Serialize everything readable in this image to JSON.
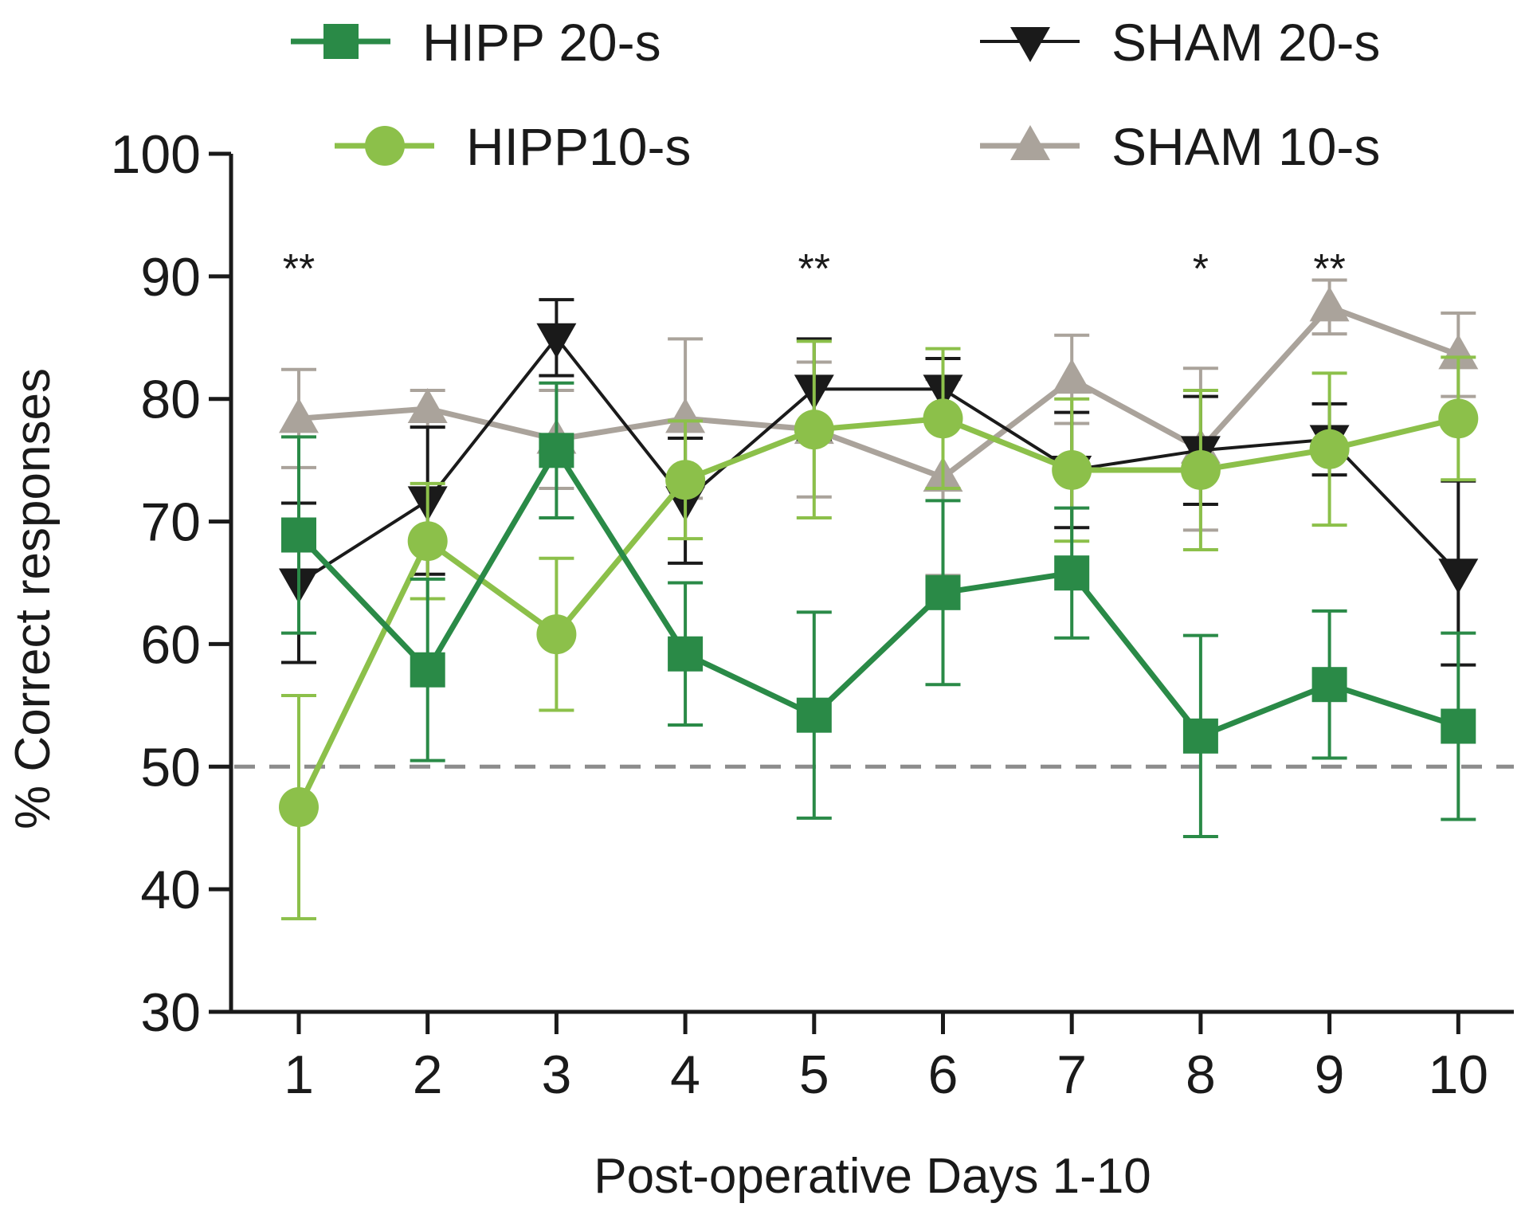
{
  "chart_data": {
    "type": "line",
    "xlabel": "Post-operative Days 1-10",
    "ylabel": "% Correct responses",
    "ylim": [
      30,
      100
    ],
    "yticks": [
      30,
      40,
      50,
      60,
      70,
      80,
      90,
      100
    ],
    "x": [
      1,
      2,
      3,
      4,
      5,
      6,
      7,
      8,
      9,
      10
    ],
    "x_tick_labels": [
      "1",
      "2",
      "3",
      "4",
      "5",
      "6",
      "7",
      "8",
      "9",
      "10"
    ],
    "y_tick_labels": [
      "30",
      "40",
      "50",
      "60",
      "70",
      "80",
      "90",
      "100"
    ],
    "grid": false,
    "legend_position": "top",
    "reference_line": {
      "y": 50,
      "style": "dashed",
      "color": "#8c8c8c"
    },
    "significance": [
      {
        "x": 1,
        "label": "**"
      },
      {
        "x": 5,
        "label": "**"
      },
      {
        "x": 8,
        "label": "*"
      },
      {
        "x": 9,
        "label": "**"
      }
    ],
    "series": [
      {
        "name": "SHAM 10-s",
        "color": "#aaa39b",
        "marker": "triangle-up",
        "values": [
          78.4,
          79.2,
          76.7,
          78.4,
          77.5,
          73.6,
          81.6,
          75.9,
          87.5,
          83.6
        ],
        "err": [
          4.0,
          1.5,
          4.0,
          6.5,
          5.5,
          8.0,
          3.6,
          6.6,
          2.2,
          3.4
        ]
      },
      {
        "name": "SHAM 20-s",
        "color": "#1a1a1a",
        "marker": "triangle-down",
        "values": [
          65.0,
          71.7,
          85.0,
          71.7,
          80.8,
          80.8,
          74.2,
          75.8,
          76.7,
          65.8
        ],
        "err": [
          6.5,
          6.0,
          3.1,
          5.1,
          4.1,
          2.5,
          4.7,
          4.4,
          2.9,
          7.5
        ]
      },
      {
        "name": "HIPP10-s",
        "color": "#8cc04a",
        "marker": "circle",
        "values": [
          46.7,
          68.4,
          60.8,
          73.4,
          77.5,
          78.4,
          74.2,
          74.2,
          75.9,
          78.4
        ],
        "err": [
          9.1,
          4.7,
          6.2,
          4.8,
          7.2,
          5.7,
          5.8,
          6.5,
          6.2,
          5.0
        ]
      },
      {
        "name": "HIPP 20-s",
        "color": "#2a8a47",
        "marker": "square",
        "values": [
          68.9,
          57.9,
          75.8,
          59.2,
          54.2,
          64.2,
          65.8,
          52.5,
          56.7,
          53.3
        ],
        "err": [
          8.0,
          7.4,
          5.5,
          5.8,
          8.4,
          7.5,
          5.3,
          8.2,
          6.0,
          7.6
        ]
      }
    ]
  }
}
